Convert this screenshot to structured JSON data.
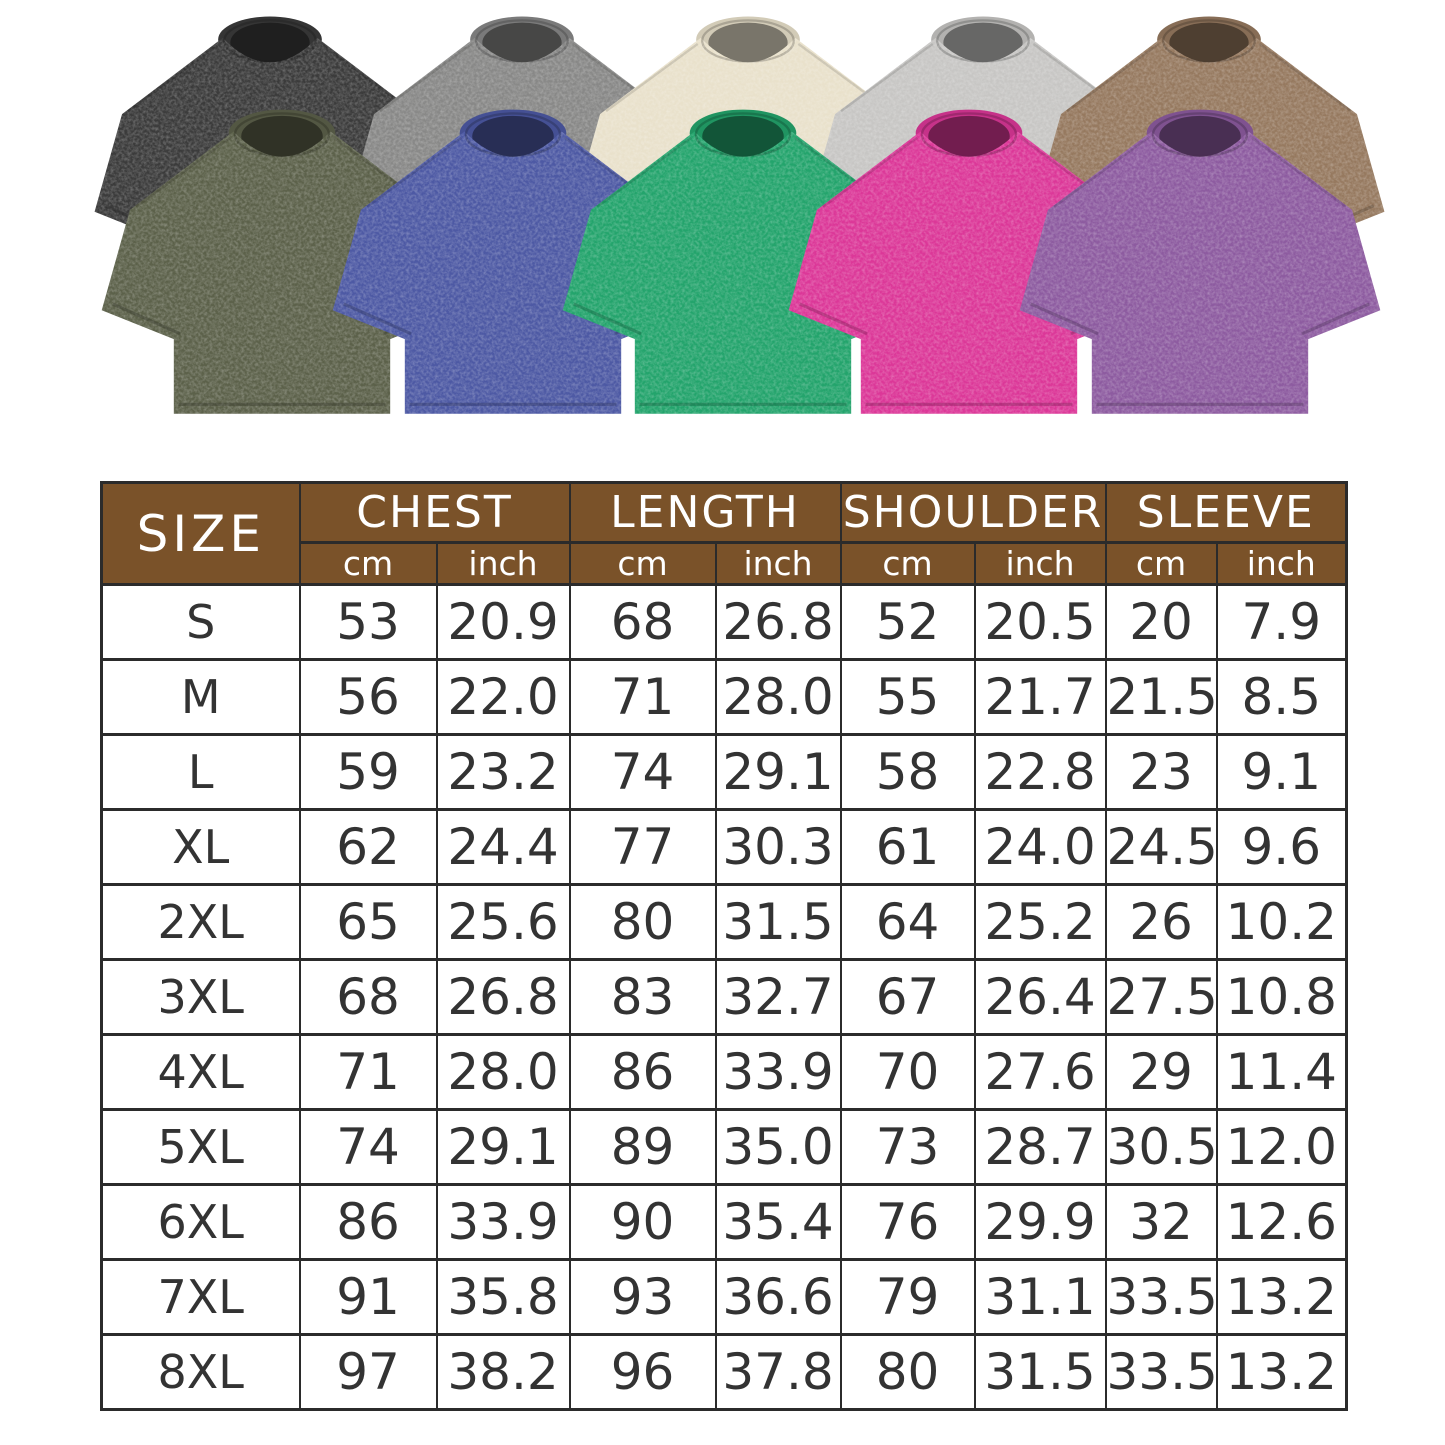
{
  "colors": {
    "page_bg": "#ffffff",
    "header_bg": "#7a5229",
    "header_text": "#ffffff",
    "body_text": "#333333",
    "border": "#2b2b2b",
    "cell_bg": "#ffffff"
  },
  "tshirts": {
    "back_row": [
      {
        "name": "washed-black",
        "color": "#3b3b3b"
      },
      {
        "name": "washed-gray",
        "color": "#888887"
      },
      {
        "name": "washed-beige",
        "color": "#e9e1cb"
      },
      {
        "name": "washed-light-gray",
        "color": "#c7c6c4"
      },
      {
        "name": "washed-brown",
        "color": "#96795f"
      }
    ],
    "front_row": [
      {
        "name": "washed-army-green",
        "color": "#5c614a"
      },
      {
        "name": "washed-blue",
        "color": "#4d59a4"
      },
      {
        "name": "washed-green",
        "color": "#23a46c"
      },
      {
        "name": "washed-rose-red",
        "color": "#dc3798"
      },
      {
        "name": "washed-purple",
        "color": "#8d5ba0"
      }
    ]
  },
  "size_chart": {
    "size_header": "SIZE",
    "groups": [
      "CHEST",
      "LENGTH",
      "SHOULDER",
      "SLEEVE"
    ],
    "unit_cm": "cm",
    "unit_inch": "inch",
    "rows": [
      {
        "size": "S",
        "values": [
          "53",
          "20.9",
          "68",
          "26.8",
          "52",
          "20.5",
          "20",
          "7.9"
        ]
      },
      {
        "size": "M",
        "values": [
          "56",
          "22.0",
          "71",
          "28.0",
          "55",
          "21.7",
          "21.5",
          "8.5"
        ]
      },
      {
        "size": "L",
        "values": [
          "59",
          "23.2",
          "74",
          "29.1",
          "58",
          "22.8",
          "23",
          "9.1"
        ]
      },
      {
        "size": "XL",
        "values": [
          "62",
          "24.4",
          "77",
          "30.3",
          "61",
          "24.0",
          "24.5",
          "9.6"
        ]
      },
      {
        "size": "2XL",
        "values": [
          "65",
          "25.6",
          "80",
          "31.5",
          "64",
          "25.2",
          "26",
          "10.2"
        ]
      },
      {
        "size": "3XL",
        "values": [
          "68",
          "26.8",
          "83",
          "32.7",
          "67",
          "26.4",
          "27.5",
          "10.8"
        ]
      },
      {
        "size": "4XL",
        "values": [
          "71",
          "28.0",
          "86",
          "33.9",
          "70",
          "27.6",
          "29",
          "11.4"
        ]
      },
      {
        "size": "5XL",
        "values": [
          "74",
          "29.1",
          "89",
          "35.0",
          "73",
          "28.7",
          "30.5",
          "12.0"
        ]
      },
      {
        "size": "6XL",
        "values": [
          "86",
          "33.9",
          "90",
          "35.4",
          "76",
          "29.9",
          "32",
          "12.6"
        ]
      },
      {
        "size": "7XL",
        "values": [
          "91",
          "35.8",
          "93",
          "36.6",
          "79",
          "31.1",
          "33.5",
          "13.2"
        ]
      },
      {
        "size": "8XL",
        "values": [
          "97",
          "38.2",
          "96",
          "37.8",
          "80",
          "31.5",
          "33.5",
          "13.2"
        ]
      }
    ]
  }
}
